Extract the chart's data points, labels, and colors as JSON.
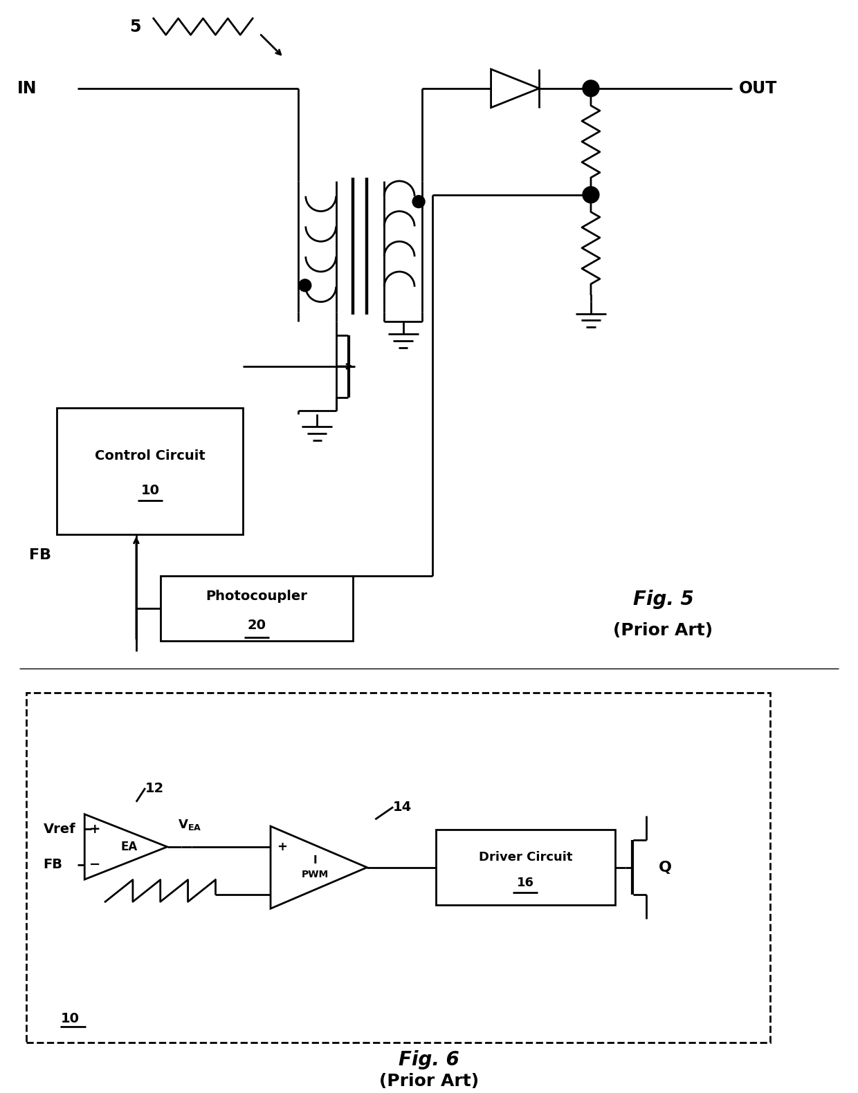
{
  "fig_width": 12.4,
  "fig_height": 15.81,
  "bg_color": "#ffffff",
  "line_color": "#000000",
  "line_width": 2.0,
  "fig5_label": "Fig. 5",
  "fig5_sub": "(Prior Art)",
  "fig6_label": "Fig. 6",
  "fig6_sub": "(Prior Art)"
}
